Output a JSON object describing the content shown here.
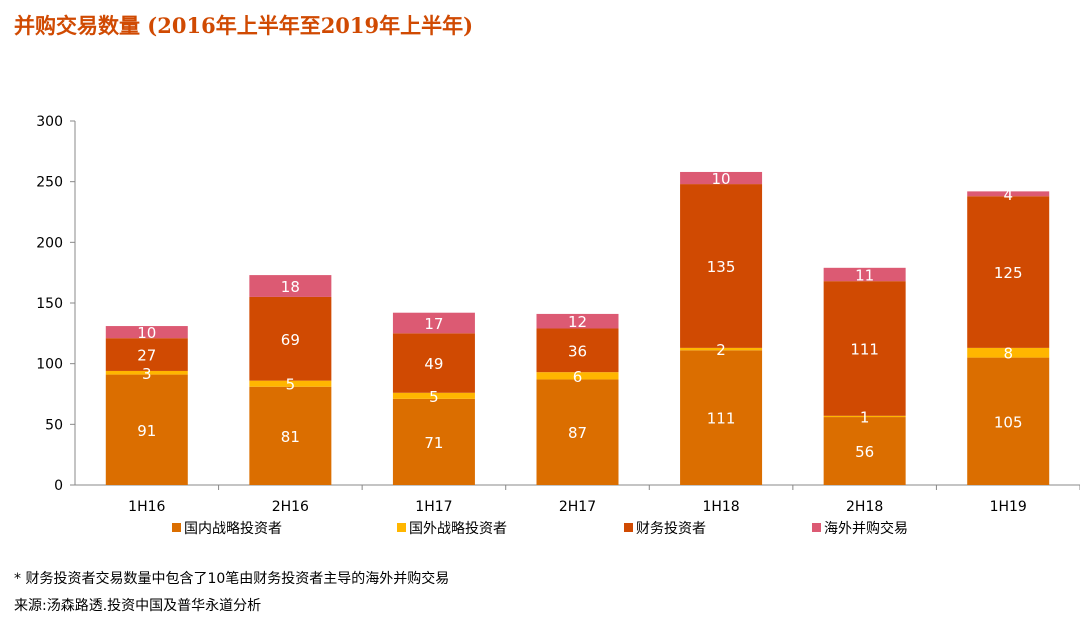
{
  "chart_data": {
    "type": "bar",
    "stacked": true,
    "title": "并购交易数量 (2016年上半年至2019年上半年)",
    "categories": [
      "1H16",
      "2H16",
      "1H17",
      "2H17",
      "1H18",
      "2H18",
      "1H19"
    ],
    "series": [
      {
        "name": "国内战略投资者",
        "color": "#DB6E00",
        "values": [
          91,
          81,
          71,
          87,
          111,
          56,
          105
        ]
      },
      {
        "name": "国外战略投资者",
        "color": "#FFB600",
        "values": [
          3,
          5,
          5,
          6,
          2,
          1,
          8
        ]
      },
      {
        "name": "财务投资者",
        "color": "#D04A02",
        "values": [
          27,
          69,
          49,
          36,
          135,
          111,
          125
        ]
      },
      {
        "name": "海外并购交易",
        "color": "#DC5A73",
        "values": [
          10,
          18,
          17,
          12,
          10,
          11,
          4
        ]
      }
    ],
    "ylim": [
      0,
      300
    ],
    "yticks": [
      0,
      50,
      100,
      150,
      200,
      250,
      300
    ],
    "grid": false,
    "legend": "bottom"
  },
  "footnotes": [
    "* 财务投资者交易数量中包含了10笔由财务投资者主导的海外并购交易",
    "来源:汤森路透.投资中国及普华永道分析"
  ]
}
